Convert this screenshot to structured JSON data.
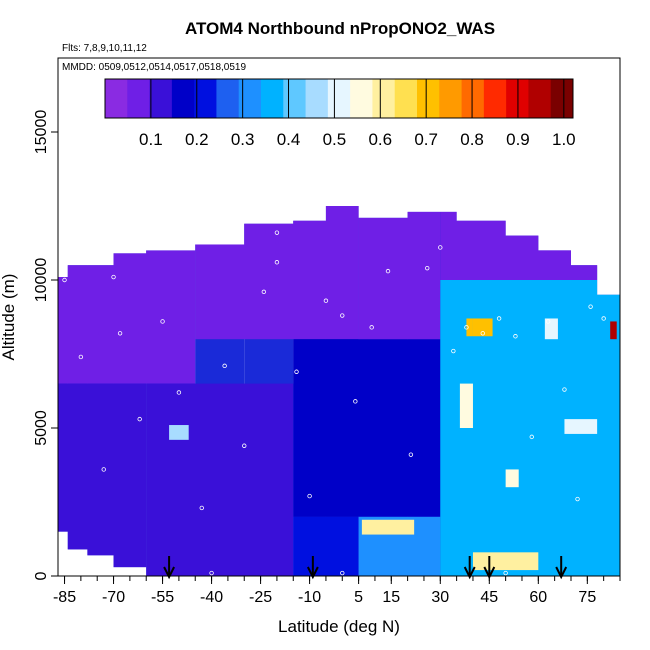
{
  "chart_data": {
    "type": "heatmap",
    "title": "ATOM4 Northbound nPropONO2_WAS",
    "subtitle_flights": "Flts: 7,8,9,10,11,12",
    "subtitle_dates": "MMDD: 0509,0512,0514,0517,0518,0519",
    "xlabel": "Latitude (deg N)",
    "ylabel": "Altitude (m)",
    "xlim": [
      -87,
      85
    ],
    "ylim": [
      0,
      17500
    ],
    "x_ticks": [
      -85,
      -70,
      -55,
      -40,
      -25,
      -10,
      5,
      15,
      30,
      45,
      60,
      75
    ],
    "y_ticks": [
      0,
      5000,
      10000,
      15000
    ],
    "colorbar": {
      "range": [
        0,
        1.02
      ],
      "ticks": [
        0.1,
        0.2,
        0.3,
        0.4,
        0.5,
        0.6,
        0.7,
        0.8,
        0.9,
        1.0
      ],
      "tick_labels": [
        "0.1",
        "0.2",
        "0.3",
        "0.4",
        "0.5",
        "0.6",
        "0.7",
        "0.8",
        "0.9",
        "1.0"
      ],
      "colors": [
        "#8a2be2",
        "#6f1fe6",
        "#3a10d8",
        "#0000c8",
        "#0010e0",
        "#1e60f0",
        "#1e90ff",
        "#00b2ff",
        "#5fc8ff",
        "#a8dcff",
        "#e6f6ff",
        "#fffbe0",
        "#fff0a0",
        "#ffe050",
        "#ffc000",
        "#ff9a00",
        "#ff6a00",
        "#ff2a00",
        "#e00000",
        "#b00000",
        "#7a0000"
      ]
    },
    "arrow_latitudes": [
      -53,
      -9,
      39,
      45,
      67
    ],
    "coverage": [
      {
        "lat": [
          -87,
          -84
        ],
        "alt": [
          1500,
          10100
        ]
      },
      {
        "lat": [
          -84,
          -78
        ],
        "alt": [
          900,
          10500
        ]
      },
      {
        "lat": [
          -78,
          -70
        ],
        "alt": [
          700,
          10500
        ]
      },
      {
        "lat": [
          -70,
          -60
        ],
        "alt": [
          300,
          10900
        ]
      },
      {
        "lat": [
          -60,
          -45
        ],
        "alt": [
          0,
          11000
        ]
      },
      {
        "lat": [
          -45,
          -30
        ],
        "alt": [
          0,
          11200
        ]
      },
      {
        "lat": [
          -30,
          -15
        ],
        "alt": [
          0,
          11900
        ]
      },
      {
        "lat": [
          -15,
          -5
        ],
        "alt": [
          0,
          12000
        ]
      },
      {
        "lat": [
          -5,
          5
        ],
        "alt": [
          0,
          12500
        ]
      },
      {
        "lat": [
          5,
          20
        ],
        "alt": [
          0,
          12100
        ]
      },
      {
        "lat": [
          20,
          35
        ],
        "alt": [
          0,
          12300
        ]
      },
      {
        "lat": [
          35,
          50
        ],
        "alt": [
          0,
          12000
        ]
      },
      {
        "lat": [
          50,
          60
        ],
        "alt": [
          0,
          11500
        ]
      },
      {
        "lat": [
          60,
          70
        ],
        "alt": [
          0,
          11000
        ]
      },
      {
        "lat": [
          70,
          78
        ],
        "alt": [
          0,
          10500
        ]
      },
      {
        "lat": [
          78,
          85
        ],
        "alt": [
          0,
          9500
        ]
      }
    ],
    "regions": [
      {
        "lat": [
          -87,
          -45
        ],
        "alt": [
          6500,
          11000
        ],
        "value": 0.05
      },
      {
        "lat": [
          -87,
          -60
        ],
        "alt": [
          0,
          6500
        ],
        "value": 0.14
      },
      {
        "lat": [
          -60,
          -15
        ],
        "alt": [
          0,
          6500
        ],
        "value": 0.13
      },
      {
        "lat": [
          -45,
          5
        ],
        "alt": [
          8000,
          12500
        ],
        "value": 0.06
      },
      {
        "lat": [
          -15,
          30
        ],
        "alt": [
          2000,
          8000
        ],
        "value": 0.16
      },
      {
        "lat": [
          5,
          30
        ],
        "alt": [
          8000,
          12500
        ],
        "value": 0.08
      },
      {
        "lat": [
          30,
          85
        ],
        "alt": [
          10000,
          12500
        ],
        "value": 0.07
      },
      {
        "lat": [
          -15,
          5
        ],
        "alt": [
          0,
          2000
        ],
        "value": 0.2
      },
      {
        "lat": [
          5,
          30
        ],
        "alt": [
          0,
          2000
        ],
        "value": 0.33
      },
      {
        "lat": [
          30,
          85
        ],
        "alt": [
          0,
          10000
        ],
        "value": 0.36
      },
      {
        "lat": [
          36,
          40
        ],
        "alt": [
          5000,
          6500
        ],
        "value": 0.58
      },
      {
        "lat": [
          38,
          40
        ],
        "alt": [
          8100,
          8700
        ],
        "value": 0.7
      },
      {
        "lat": [
          40,
          46
        ],
        "alt": [
          8100,
          8700
        ],
        "value": 0.72
      },
      {
        "lat": [
          50,
          54
        ],
        "alt": [
          3000,
          3600
        ],
        "value": 0.55
      },
      {
        "lat": [
          6,
          22
        ],
        "alt": [
          1400,
          1900
        ],
        "value": 0.6
      },
      {
        "lat": [
          40,
          60
        ],
        "alt": [
          200,
          800
        ],
        "value": 0.6
      },
      {
        "lat": [
          68,
          78
        ],
        "alt": [
          4800,
          5300
        ],
        "value": 0.5
      },
      {
        "lat": [
          -53,
          -47
        ],
        "alt": [
          4600,
          5100
        ],
        "value": 0.45
      },
      {
        "lat": [
          62,
          66
        ],
        "alt": [
          8000,
          8700
        ],
        "value": 0.5
      },
      {
        "lat": [
          82,
          84
        ],
        "alt": [
          8000,
          8600
        ],
        "value": 0.95
      }
    ],
    "flight_track": [
      {
        "lat": -85,
        "alt": 10000
      },
      {
        "lat": -80,
        "alt": 7400
      },
      {
        "lat": -73,
        "alt": 3600
      },
      {
        "lat": -68,
        "alt": 8200
      },
      {
        "lat": -62,
        "alt": 5300
      },
      {
        "lat": -55,
        "alt": 8600
      },
      {
        "lat": -50,
        "alt": 6200
      },
      {
        "lat": -43,
        "alt": 2300
      },
      {
        "lat": -36,
        "alt": 7100
      },
      {
        "lat": -30,
        "alt": 4400
      },
      {
        "lat": -24,
        "alt": 9600
      },
      {
        "lat": -20,
        "alt": 10600
      },
      {
        "lat": -14,
        "alt": 6900
      },
      {
        "lat": -10,
        "alt": 2700
      },
      {
        "lat": -5,
        "alt": 9300
      },
      {
        "lat": 0,
        "alt": 8800
      },
      {
        "lat": 4,
        "alt": 5900
      },
      {
        "lat": 9,
        "alt": 8400
      },
      {
        "lat": 14,
        "alt": 10300
      },
      {
        "lat": 21,
        "alt": 4100
      },
      {
        "lat": 26,
        "alt": 10400
      },
      {
        "lat": 30,
        "alt": 11100
      },
      {
        "lat": 34,
        "alt": 7600
      },
      {
        "lat": 38,
        "alt": 8400
      },
      {
        "lat": 43,
        "alt": 8200
      },
      {
        "lat": 48,
        "alt": 8700
      },
      {
        "lat": 53,
        "alt": 8100
      },
      {
        "lat": 58,
        "alt": 4700
      },
      {
        "lat": 63,
        "alt": 8600
      },
      {
        "lat": 68,
        "alt": 6300
      },
      {
        "lat": 72,
        "alt": 2600
      },
      {
        "lat": 76,
        "alt": 9100
      },
      {
        "lat": 80,
        "alt": 8700
      },
      {
        "lat": -70,
        "alt": 10100
      },
      {
        "lat": -20,
        "alt": 11600
      },
      {
        "lat": 0,
        "alt": 12700
      },
      {
        "lat": -40,
        "alt": 100
      },
      {
        "lat": 0,
        "alt": 100
      },
      {
        "lat": 50,
        "alt": 100
      }
    ]
  }
}
